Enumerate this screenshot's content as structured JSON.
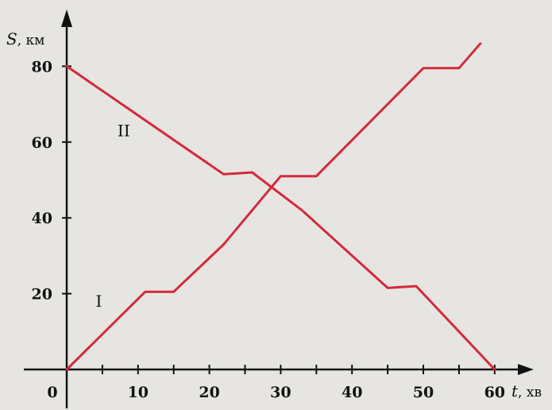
{
  "chart_data": {
    "type": "line",
    "xlabel": {
      "var": "t",
      "unit": ", хв"
    },
    "ylabel": {
      "var": "S",
      "unit": ", км"
    },
    "xlim": [
      0,
      62
    ],
    "ylim": [
      0,
      85
    ],
    "origin_label": "0",
    "x_ticks": [
      5,
      10,
      15,
      20,
      25,
      30,
      35,
      40,
      45,
      50,
      55,
      60
    ],
    "x_tick_labels": [
      {
        "x": 10,
        "label": "10"
      },
      {
        "x": 20,
        "label": "20"
      },
      {
        "x": 30,
        "label": "30"
      },
      {
        "x": 40,
        "label": "40"
      },
      {
        "x": 50,
        "label": "50"
      },
      {
        "x": 60,
        "label": "60"
      }
    ],
    "y_tick_labels": [
      {
        "y": 20,
        "label": "20"
      },
      {
        "y": 40,
        "label": "40"
      },
      {
        "y": 60,
        "label": "60"
      },
      {
        "y": 80,
        "label": "80"
      }
    ],
    "grid": false,
    "line_color": "#d42a3c",
    "series": [
      {
        "name": "I",
        "points": [
          [
            0,
            0
          ],
          [
            11,
            20.5
          ],
          [
            15,
            20.5
          ],
          [
            22,
            33
          ],
          [
            30,
            51
          ],
          [
            35,
            51
          ],
          [
            50,
            79.5
          ],
          [
            55,
            79.5
          ],
          [
            58,
            86
          ]
        ],
        "label_at": [
          4.5,
          18
        ]
      },
      {
        "name": "II",
        "points": [
          [
            0,
            80
          ],
          [
            22,
            51.5
          ],
          [
            26,
            52
          ],
          [
            33,
            42
          ],
          [
            45,
            21.5
          ],
          [
            49,
            22
          ],
          [
            60,
            0
          ]
        ],
        "label_at": [
          8,
          63
        ]
      }
    ]
  }
}
